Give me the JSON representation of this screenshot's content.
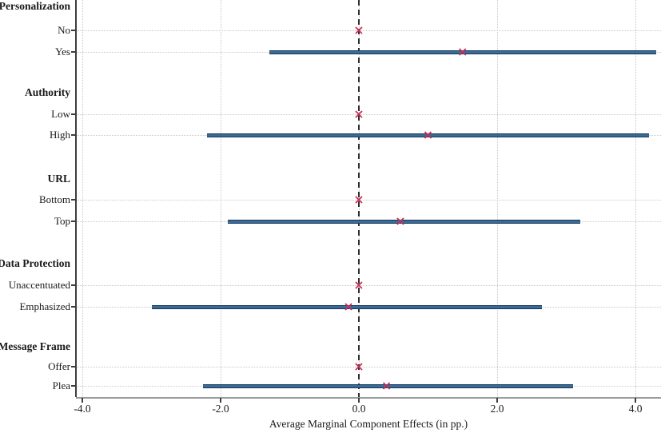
{
  "chart_data": {
    "type": "scatter",
    "variant": "coefficient-forest-plot",
    "title": "",
    "xlabel": "Average Marginal Component Effects (in pp.)",
    "ylabel": "",
    "xlim": [
      -4.09,
      4.37
    ],
    "x_ticks": [
      -4.0,
      -2.0,
      0.0,
      2.0,
      4.0
    ],
    "x_tick_labels": [
      "-4.0",
      "-2.0",
      "0.0",
      "2.0",
      "4.0"
    ],
    "grid": true,
    "zero_reference_line": 0.0,
    "marker_glyph": "×",
    "legend": "none",
    "colors": {
      "ci_fill": "#3a6a95",
      "ci_edge": "#16395c",
      "marker": "#c92d55",
      "zero_line": "#2e2e2e",
      "grid": "#c9c9c9",
      "x_axis": "#9a9a9a",
      "y_axis": "#3d3d3d",
      "text": "#1a1a1a"
    },
    "sections": [
      {
        "header": "Personalization",
        "rows": [
          {
            "label": "No",
            "estimate": 0.0,
            "ci_low": null,
            "ci_high": null,
            "reference": true
          },
          {
            "label": "Yes",
            "estimate": 1.5,
            "ci_low": -1.3,
            "ci_high": 4.3,
            "reference": false
          }
        ]
      },
      {
        "header": "Authority",
        "rows": [
          {
            "label": "Low",
            "estimate": 0.0,
            "ci_low": null,
            "ci_high": null,
            "reference": true
          },
          {
            "label": "High",
            "estimate": 1.0,
            "ci_low": -2.2,
            "ci_high": 4.2,
            "reference": false
          }
        ]
      },
      {
        "header": "URL",
        "rows": [
          {
            "label": "Bottom",
            "estimate": 0.0,
            "ci_low": null,
            "ci_high": null,
            "reference": true
          },
          {
            "label": "Top",
            "estimate": 0.6,
            "ci_low": -1.9,
            "ci_high": 3.2,
            "reference": false
          }
        ]
      },
      {
        "header": "Data Protection",
        "rows": [
          {
            "label": "Unaccentuated",
            "estimate": 0.0,
            "ci_low": null,
            "ci_high": null,
            "reference": true
          },
          {
            "label": "Emphasized",
            "estimate": -0.15,
            "ci_low": -3.0,
            "ci_high": 2.65,
            "reference": false
          }
        ]
      },
      {
        "header": "Message Frame",
        "rows": [
          {
            "label": "Offer",
            "estimate": 0.0,
            "ci_low": null,
            "ci_high": null,
            "reference": true
          },
          {
            "label": "Plea",
            "estimate": 0.4,
            "ci_low": -2.25,
            "ci_high": 3.1,
            "reference": false
          }
        ]
      }
    ]
  }
}
